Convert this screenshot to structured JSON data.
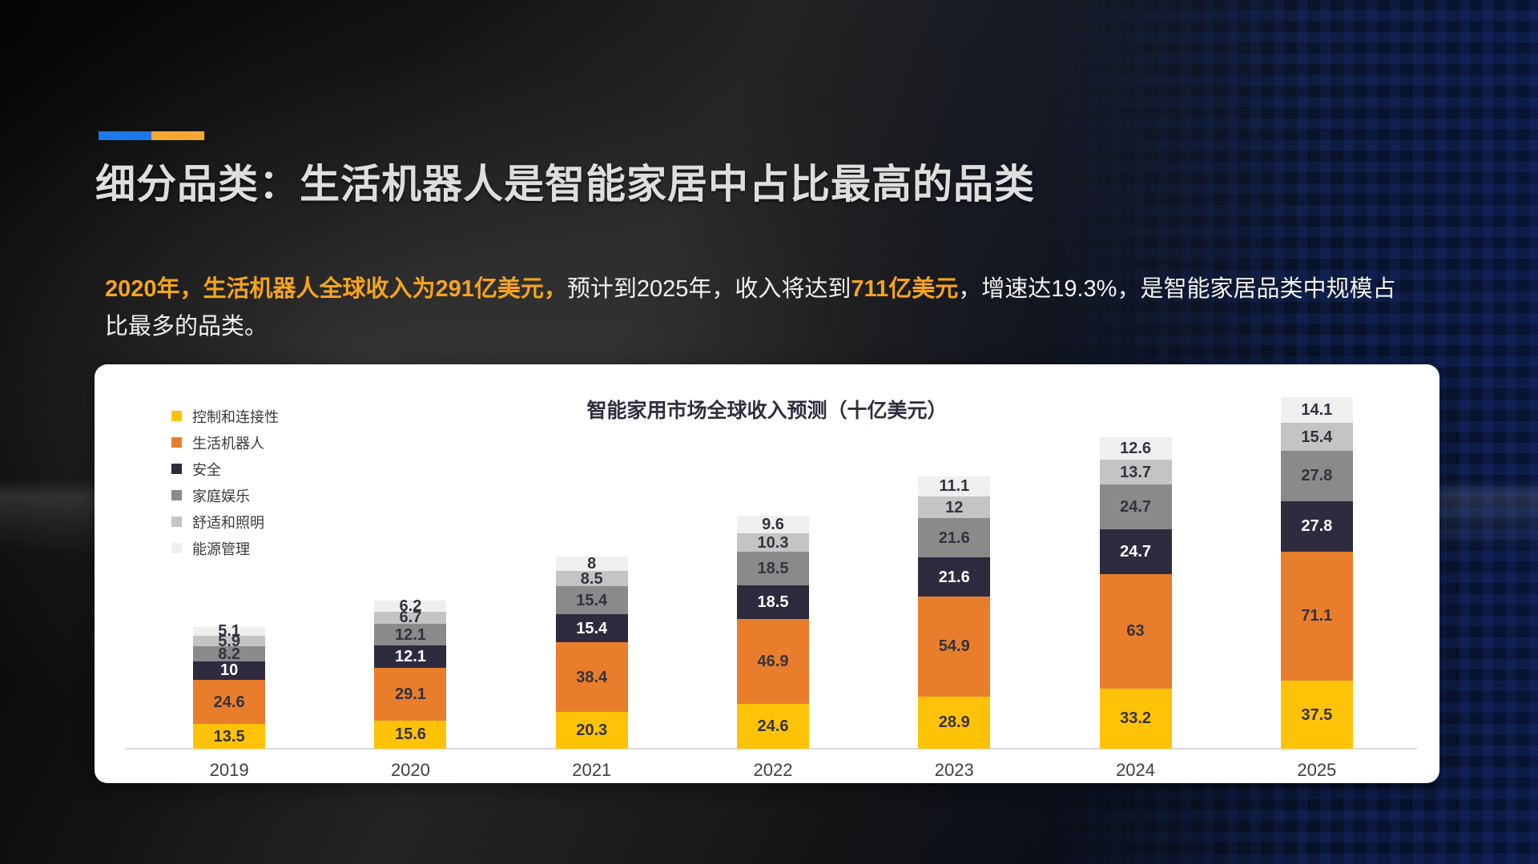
{
  "slide": {
    "title": "细分品类：生活机器人是智能家居中占比最高的品类",
    "paragraph": {
      "seg1": "2020年，生活机器人全球收入为291亿美元，",
      "seg2": "预计到2025年，收入将达到",
      "seg3": "711亿美元",
      "seg4": "，增速达19.3%，是智能家居品类中规模占比最多的品类。"
    },
    "accent_colors": {
      "blue": "#1e78e8",
      "orange": "#f6a833"
    }
  },
  "chart_data": {
    "type": "bar",
    "stacked": true,
    "title": "智能家用市场全球收入预测（十亿美元）",
    "unit": "十亿美元",
    "categories": [
      "2019",
      "2020",
      "2021",
      "2022",
      "2023",
      "2024",
      "2025"
    ],
    "series": [
      {
        "name": "控制和连接性",
        "color": "#fec306",
        "label_color": "#35323f",
        "values": [
          13.5,
          15.6,
          20.3,
          24.6,
          28.9,
          33.2,
          37.5
        ]
      },
      {
        "name": "生活机器人",
        "color": "#e87e2b",
        "label_color": "#35323f",
        "values": [
          24.6,
          29.1,
          38.4,
          46.9,
          54.9,
          63,
          71.1
        ]
      },
      {
        "name": "安全",
        "color": "#2e2b3f",
        "label_color": "#ffffff",
        "values": [
          10,
          12.1,
          15.4,
          18.5,
          21.6,
          24.7,
          27.8
        ]
      },
      {
        "name": "家庭娱乐",
        "color": "#8a8a8a",
        "label_color": "#35323f",
        "values": [
          8.2,
          12.1,
          15.4,
          18.5,
          21.6,
          24.7,
          27.8
        ]
      },
      {
        "name": "舒适和照明",
        "color": "#c4c4c4",
        "label_color": "#35323f",
        "values": [
          5.9,
          6.7,
          8.5,
          10.3,
          12,
          13.7,
          15.4
        ]
      },
      {
        "name": "能源管理",
        "color": "#efefef",
        "label_color": "#35323f",
        "values": [
          5.1,
          6.2,
          8,
          9.6,
          11.1,
          12.6,
          14.1
        ]
      }
    ],
    "legend_position": "top-left",
    "grid": false,
    "ylim": [
      0,
      195
    ]
  }
}
